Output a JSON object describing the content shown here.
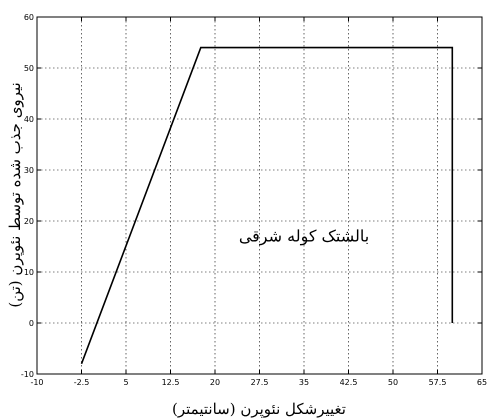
{
  "chart_data": {
    "type": "line",
    "title": "",
    "xlabel": "تغییرشکل نئوپرن (سانتیمتر)",
    "ylabel": "نیروی جذب شده توسط نئوپرن (تن)",
    "xlim": [
      -10,
      65
    ],
    "ylim": [
      -10,
      60
    ],
    "grid": true,
    "legend": "none",
    "x_ticks": [
      -10,
      -2.5,
      5,
      12.5,
      20,
      27.5,
      35,
      42.5,
      50,
      57.5,
      65
    ],
    "x_tick_labels": [
      "-10",
      "-2.5",
      "5",
      "12.5",
      "20",
      "27.5",
      "35",
      "42.5",
      "50",
      "57.5",
      "65"
    ],
    "y_ticks": [
      -10,
      0,
      10,
      20,
      30,
      40,
      50,
      60
    ],
    "y_tick_labels": [
      "-10",
      "0",
      "10",
      "20",
      "30",
      "40",
      "50",
      "60"
    ],
    "series": [
      {
        "color": "#000000",
        "x": [
          -2.5,
          17.6,
          60,
          60
        ],
        "y": [
          -8,
          54,
          54,
          0
        ]
      }
    ],
    "annotations": [
      {
        "text": "بالشتک کوله شرقی",
        "x": 35,
        "y": 16
      }
    ]
  }
}
